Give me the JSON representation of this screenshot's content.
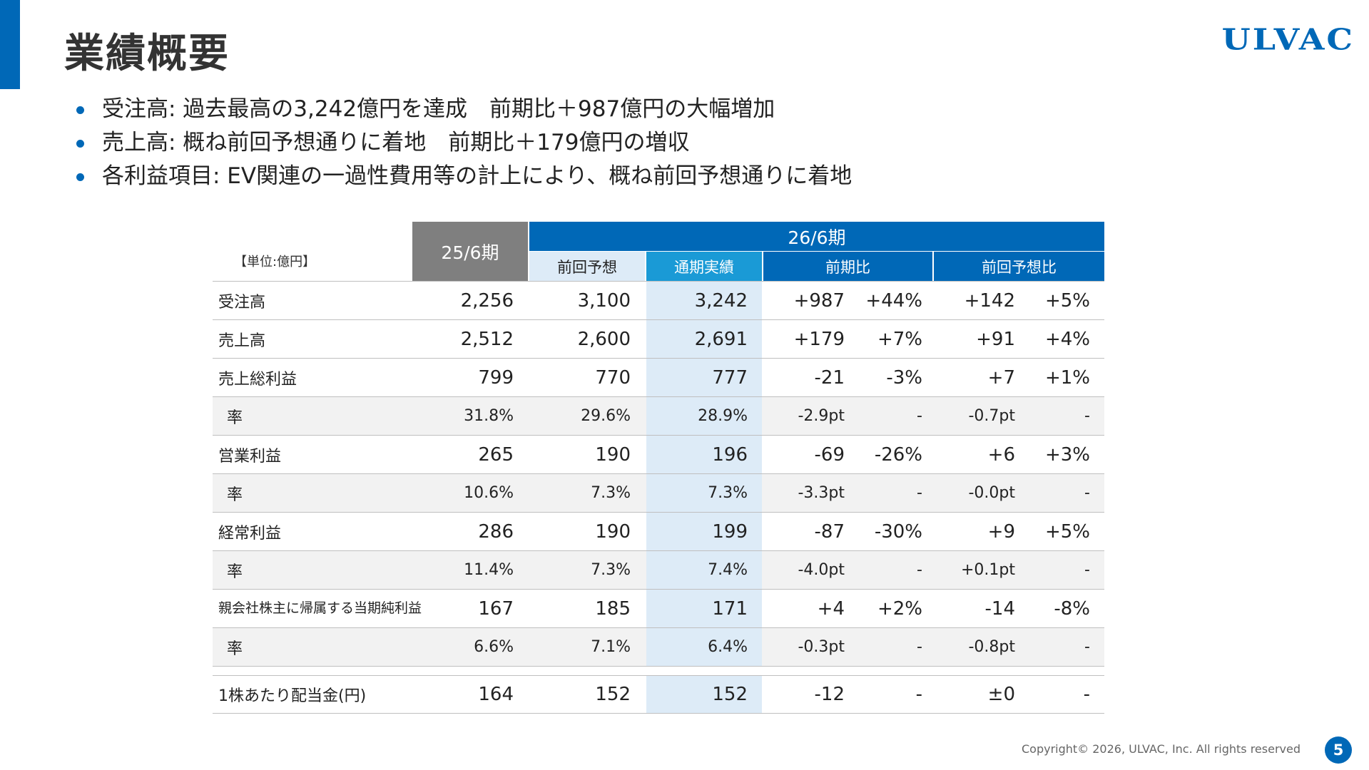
{
  "page": {
    "title": "業績概要",
    "logo_text": "ULVAC",
    "copyright": "Copyright© 2026, ULVAC, Inc. All rights reserved",
    "page_number": "5",
    "accent_color": "#0068b7"
  },
  "bullets": [
    "受注高: 過去最高の3,242億円を達成　前期比＋987億円の大幅増加",
    "売上高: 概ね前回予想通りに着地　前期比＋179億円の増収",
    "各利益項目: EV関連の一過性費用等の計上により、概ね前回予想通りに着地"
  ],
  "table": {
    "unit_label": "【単位:億円】",
    "col_prev_period": "25/6期",
    "col_current_period": "26/6期",
    "col_forecast": "前回予想",
    "col_actual": "通期実績",
    "col_yoy": "前期比",
    "col_vs_forecast": "前回予想比",
    "rows": [
      {
        "label": "受注高",
        "prev": "2,256",
        "forecast": "3,100",
        "actual": "3,242",
        "yoy_abs": "+987",
        "yoy_pct": "+44%",
        "fc_abs": "+142",
        "fc_pct": "+5%"
      },
      {
        "label": "売上高",
        "prev": "2,512",
        "forecast": "2,600",
        "actual": "2,691",
        "yoy_abs": "+179",
        "yoy_pct": "+7%",
        "fc_abs": "+91",
        "fc_pct": "+4%"
      },
      {
        "label": "売上総利益",
        "prev": "799",
        "forecast": "770",
        "actual": "777",
        "yoy_abs": "-21",
        "yoy_pct": "-3%",
        "fc_abs": "+7",
        "fc_pct": "+1%"
      },
      {
        "label": "率",
        "prev": "31.8%",
        "forecast": "29.6%",
        "actual": "28.9%",
        "yoy_abs": "-2.9pt",
        "yoy_pct": "-",
        "fc_abs": "-0.7pt",
        "fc_pct": "-"
      },
      {
        "label": "営業利益",
        "prev": "265",
        "forecast": "190",
        "actual": "196",
        "yoy_abs": "-69",
        "yoy_pct": "-26%",
        "fc_abs": "+6",
        "fc_pct": "+3%"
      },
      {
        "label": "率",
        "prev": "10.6%",
        "forecast": "7.3%",
        "actual": "7.3%",
        "yoy_abs": "-3.3pt",
        "yoy_pct": "-",
        "fc_abs": "-0.0pt",
        "fc_pct": "-"
      },
      {
        "label": "経常利益",
        "prev": "286",
        "forecast": "190",
        "actual": "199",
        "yoy_abs": "-87",
        "yoy_pct": "-30%",
        "fc_abs": "+9",
        "fc_pct": "+5%"
      },
      {
        "label": "率",
        "prev": "11.4%",
        "forecast": "7.3%",
        "actual": "7.4%",
        "yoy_abs": "-4.0pt",
        "yoy_pct": "-",
        "fc_abs": "+0.1pt",
        "fc_pct": "-"
      },
      {
        "label_line1": "親会社株主に帰属する",
        "label_line2": "当期純利益",
        "prev": "167",
        "forecast": "185",
        "actual": "171",
        "yoy_abs": "+4",
        "yoy_pct": "+2%",
        "fc_abs": "-14",
        "fc_pct": "-8%"
      },
      {
        "label": "率",
        "prev": "6.6%",
        "forecast": "7.1%",
        "actual": "6.4%",
        "yoy_abs": "-0.3pt",
        "yoy_pct": "-",
        "fc_abs": "-0.8pt",
        "fc_pct": "-"
      },
      {
        "label": "1株あたり配当金(円)",
        "prev": "164",
        "forecast": "152",
        "actual": "152",
        "yoy_abs": "-12",
        "yoy_pct": "-",
        "fc_abs": "±0",
        "fc_pct": "-"
      }
    ]
  }
}
